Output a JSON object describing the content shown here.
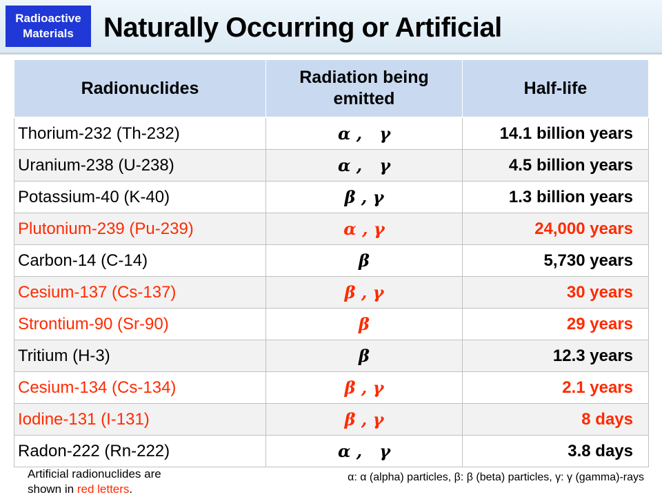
{
  "header": {
    "badge_line1": "Radioactive",
    "badge_line2": "Materials",
    "title": "Naturally Occurring or Artificial"
  },
  "table": {
    "columns": [
      "Radionuclides",
      "Radiation being emitted",
      "Half-life"
    ],
    "rows": [
      {
        "name": "Thorium-232 (Th-232)",
        "radiation": "α ,   γ",
        "half_life": "14.1 billion years",
        "artificial": false
      },
      {
        "name": "Uranium-238 (U-238)",
        "radiation": "α ,   γ",
        "half_life": "4.5 billion years",
        "artificial": false
      },
      {
        "name": "Potassium-40 (K-40)",
        "radiation": "β , γ",
        "half_life": "1.3 billion years",
        "artificial": false
      },
      {
        "name": "Plutonium-239 (Pu-239)",
        "radiation": "α , γ",
        "half_life": "24,000 years",
        "artificial": true
      },
      {
        "name": "Carbon-14 (C-14)",
        "radiation": "β",
        "half_life": "5,730 years",
        "artificial": false
      },
      {
        "name": "Cesium-137 (Cs-137)",
        "radiation": "β , γ",
        "half_life": "30 years",
        "artificial": true
      },
      {
        "name": "Strontium-90 (Sr-90)",
        "radiation": "β",
        "half_life": "29 years",
        "artificial": true
      },
      {
        "name": "Tritium (H-3)",
        "radiation": "β",
        "half_life": "12.3 years",
        "artificial": false
      },
      {
        "name": "Cesium-134 (Cs-134)",
        "radiation": "β , γ",
        "half_life": "2.1 years",
        "artificial": true
      },
      {
        "name": "Iodine-131 (I-131)",
        "radiation": "β , γ",
        "half_life": "8 days",
        "artificial": true
      },
      {
        "name": "Radon-222 (Rn-222)",
        "radiation": "α ,   γ",
        "half_life": "3.8 days",
        "artificial": false
      }
    ]
  },
  "footnote": {
    "left_line1": "Artificial radionuclides are",
    "left_line2_prefix": "shown in ",
    "left_line2_red": "red letters",
    "left_line2_suffix": ".",
    "right": "α: α (alpha) particles, β: β (beta) particles, γ: γ (gamma)-rays"
  },
  "colors": {
    "badge": "#1f38d6",
    "header_fill": "#c9daf0",
    "artificial_text": "#ff2a00"
  }
}
